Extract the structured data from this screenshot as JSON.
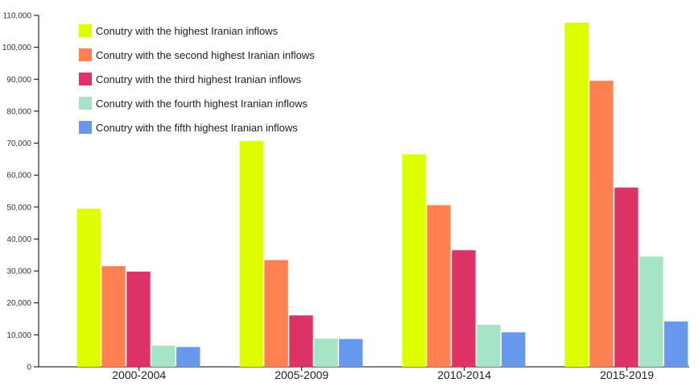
{
  "chart_data": {
    "type": "bar",
    "categories": [
      "2000-2004",
      "2005-2009",
      "2010-2014",
      "2015-2019"
    ],
    "series": [
      {
        "name": "Conutry with the highest Iranian inflows",
        "color": "#ddff00",
        "values": [
          49500,
          70700,
          66500,
          107700
        ]
      },
      {
        "name": "Conutry with the second highest Iranian inflows",
        "color": "#ff8050",
        "values": [
          31500,
          33400,
          50600,
          89500
        ]
      },
      {
        "name": "Conutry with the third highest Iranian inflows",
        "color": "#dd3366",
        "values": [
          29800,
          16100,
          36500,
          56100
        ]
      },
      {
        "name": "Conutry with the fourth highest Iranian inflows",
        "color": "#a5e4c4",
        "values": [
          6600,
          8800,
          13100,
          34500
        ]
      },
      {
        "name": "Conutry with the fifth highest Iranian inflows",
        "color": "#6699ee",
        "values": [
          6200,
          8700,
          10800,
          14200
        ]
      }
    ],
    "yticks": [
      "0",
      "10,000",
      "20,000",
      "30,000",
      "40,000",
      "50,000",
      "60,000",
      "70,000",
      "80,000",
      "90,000",
      "100,000",
      "110,000"
    ],
    "ylim": [
      0,
      110000
    ],
    "legend_position": "top-left",
    "grid": false,
    "title": "",
    "xlabel": "",
    "ylabel": ""
  }
}
